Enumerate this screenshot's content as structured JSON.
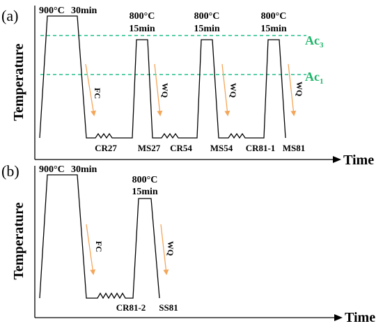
{
  "panel_a": {
    "letter": "(a)",
    "ylabel": "Temperature",
    "xlabel": "Time",
    "step1_temp": "900°C",
    "step1_time": "30min",
    "steps_temp": [
      "800°C",
      "800°C",
      "800°C"
    ],
    "steps_time": [
      "15min",
      "15min",
      "15min"
    ],
    "cool_labels": [
      "FC",
      "WQ",
      "WQ",
      "WQ"
    ],
    "sample_labels": [
      "CR27",
      "MS27",
      "CR54",
      "MS54",
      "CR81-1",
      "MS81"
    ],
    "ac3_main": "Ac",
    "ac3_sub": "3",
    "ac1_main": "Ac",
    "ac1_sub": "1"
  },
  "panel_b": {
    "letter": "(b)",
    "ylabel": "Temperature",
    "xlabel": "Time",
    "step1_temp": "900°C",
    "step1_time": "30min",
    "step2_temp": "800°C",
    "step2_time": "15min",
    "cool_labels": [
      "FC",
      "WQ"
    ],
    "sample_labels": [
      "CR81-2",
      "SS81"
    ]
  },
  "colors": {
    "ac_line": "#22c18a",
    "ac_text": "#1fb56a",
    "arrow": "#f4a65a",
    "line": "#000000"
  },
  "icons": [
    "arrow-right",
    "arrow-up",
    "arrow-down"
  ]
}
